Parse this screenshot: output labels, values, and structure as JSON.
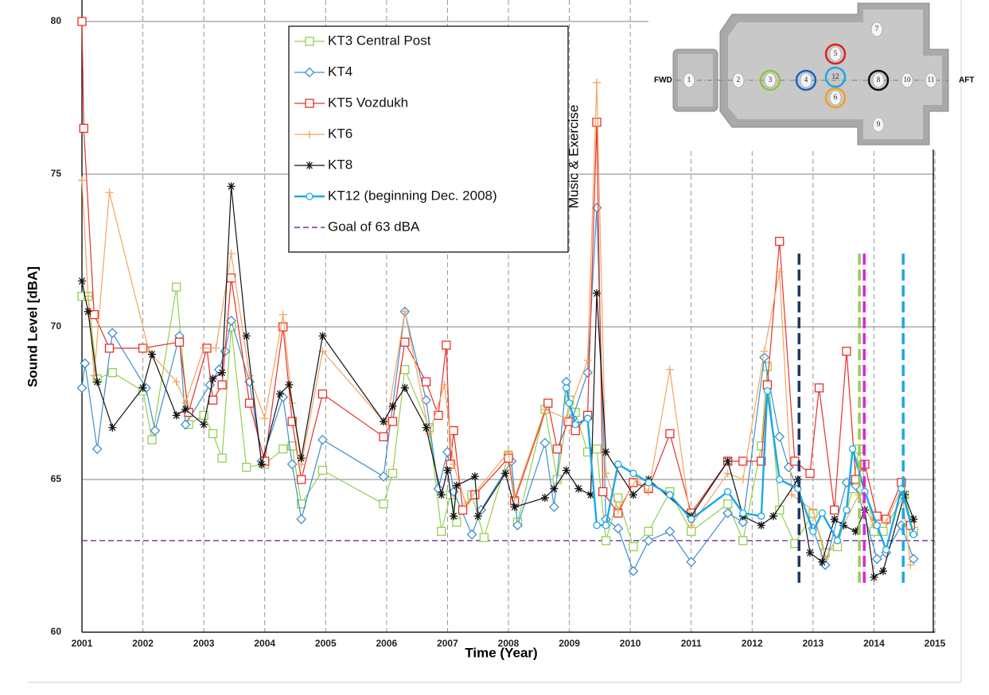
{
  "chart_data": {
    "type": "line",
    "x_label": "Time (Year)",
    "y_label": "Sound Level [dBA]",
    "xlim": [
      2001,
      2015
    ],
    "ylim": [
      60,
      80
    ],
    "xticks": [
      2001,
      2002,
      2003,
      2004,
      2005,
      2006,
      2007,
      2008,
      2009,
      2010,
      2011,
      2012,
      2013,
      2014,
      2015
    ],
    "yticks": [
      60,
      65,
      70,
      75,
      80
    ],
    "grid": true,
    "series": [
      {
        "name": "KT3 Central Post",
        "color": "#92d050",
        "marker": "square",
        "x": [
          2001.0,
          2001.1,
          2001.25,
          2001.5,
          2002.0,
          2002.15,
          2002.55,
          2002.75,
          2003.0,
          2003.15,
          2003.3,
          2003.45,
          2003.7,
          2004.0,
          2004.3,
          2004.45,
          2004.6,
          2004.95,
          2005.95,
          2006.1,
          2006.3,
          2006.7,
          2006.9,
          2007.05,
          2007.15,
          2007.4,
          2007.6,
          2008.0,
          2008.15,
          2008.6,
          2008.8,
          2009.0,
          2009.1,
          2009.3,
          2009.45,
          2009.6,
          2009.8,
          2010.05,
          2010.3,
          2010.65,
          2011.0,
          2011.6,
          2011.85,
          2012.15,
          2012.25,
          2012.45,
          2012.7,
          2013.0,
          2013.2,
          2013.4,
          2013.65,
          2013.75,
          2014.0,
          2014.15,
          2014.5,
          2014.65
        ],
        "values": [
          71.0,
          71.0,
          68.3,
          68.5,
          67.9,
          66.3,
          71.3,
          66.8,
          67.1,
          66.5,
          65.7,
          70.0,
          65.4,
          65.5,
          66.0,
          66.1,
          64.2,
          65.3,
          64.2,
          65.2,
          68.6,
          66.7,
          63.3,
          64.5,
          63.6,
          64.5,
          63.1,
          65.8,
          63.6,
          67.3,
          65.0,
          67.6,
          67.2,
          65.9,
          66.0,
          63.0,
          64.4,
          62.8,
          63.3,
          64.6,
          63.3,
          64.2,
          63.0,
          66.1,
          68.7,
          64.0,
          62.9,
          63.9,
          62.6,
          62.8,
          64.7,
          66.0,
          63.3,
          63.3,
          64.5,
          63.3
        ]
      },
      {
        "name": "KT4",
        "color": "#3d8fd0",
        "marker": "diamond",
        "x": [
          2001.0,
          2001.05,
          2001.25,
          2001.5,
          2002.05,
          2002.2,
          2002.6,
          2002.7,
          2003.1,
          2003.25,
          2003.35,
          2003.45,
          2003.75,
          2003.95,
          2004.3,
          2004.45,
          2004.6,
          2004.95,
          2005.95,
          2006.3,
          2006.65,
          2006.85,
          2007.0,
          2007.1,
          2007.4,
          2007.55,
          2008.05,
          2008.15,
          2008.6,
          2008.75,
          2008.95,
          2009.05,
          2009.3,
          2009.45,
          2009.6,
          2009.8,
          2010.05,
          2010.3,
          2010.65,
          2011.0,
          2011.6,
          2011.85,
          2012.2,
          2012.45,
          2012.6,
          2013.0,
          2013.2,
          2013.55,
          2013.7,
          2014.05,
          2014.2,
          2014.45,
          2014.65
        ],
        "values": [
          68.0,
          68.8,
          66.0,
          69.8,
          68.0,
          66.6,
          69.7,
          66.8,
          68.1,
          68.6,
          69.2,
          70.2,
          68.2,
          65.6,
          67.7,
          65.5,
          63.7,
          66.3,
          65.1,
          70.5,
          67.6,
          64.7,
          65.9,
          64.6,
          63.2,
          64.0,
          65.6,
          63.5,
          66.2,
          64.1,
          68.2,
          67.0,
          68.5,
          73.9,
          63.7,
          63.4,
          62.0,
          63.0,
          63.3,
          62.3,
          63.9,
          63.6,
          69.0,
          66.4,
          65.4,
          63.4,
          62.2,
          64.9,
          64.8,
          62.4,
          62.6,
          63.5,
          62.4
        ]
      },
      {
        "name": "KT5 Vozdukh",
        "color": "#e8302a",
        "marker": "square",
        "x": [
          2001.0,
          2001.03,
          2001.2,
          2001.45,
          2002.0,
          2002.6,
          2002.75,
          2003.05,
          2003.15,
          2003.3,
          2003.45,
          2003.75,
          2004.0,
          2004.3,
          2004.45,
          2004.6,
          2004.95,
          2005.95,
          2006.1,
          2006.3,
          2006.65,
          2006.85,
          2006.98,
          2007.05,
          2007.1,
          2007.25,
          2007.45,
          2008.0,
          2008.1,
          2008.65,
          2008.8,
          2008.98,
          2009.1,
          2009.3,
          2009.45,
          2009.55,
          2009.8,
          2010.05,
          2010.3,
          2010.65,
          2011.0,
          2011.6,
          2011.85,
          2012.15,
          2012.25,
          2012.45,
          2012.7,
          2012.95,
          2013.1,
          2013.35,
          2013.55,
          2013.7,
          2013.85,
          2014.05,
          2014.2,
          2014.45,
          2014.6
        ],
        "values": [
          80.0,
          76.5,
          70.4,
          69.3,
          69.3,
          69.5,
          67.2,
          69.3,
          67.6,
          68.1,
          71.6,
          67.5,
          65.6,
          70.0,
          66.9,
          65.0,
          67.8,
          66.4,
          66.9,
          69.5,
          68.2,
          67.1,
          69.4,
          65.5,
          66.6,
          64.0,
          64.5,
          65.7,
          64.3,
          67.5,
          66.0,
          66.9,
          66.6,
          67.1,
          76.7,
          64.6,
          63.9,
          64.9,
          64.7,
          66.5,
          63.9,
          65.6,
          65.6,
          65.6,
          68.1,
          72.8,
          65.6,
          65.2,
          68.0,
          64.0,
          69.2,
          65.0,
          65.5,
          63.8,
          63.7,
          64.9,
          63.5
        ]
      },
      {
        "name": "KT6",
        "color": "#f4a460",
        "marker": "plus",
        "x": [
          2001.0,
          2001.1,
          2001.2,
          2001.45,
          2002.1,
          2002.55,
          2002.7,
          2003.0,
          2003.2,
          2003.45,
          2003.75,
          2004.0,
          2004.3,
          2004.45,
          2004.6,
          2004.95,
          2006.0,
          2006.3,
          2006.7,
          2006.95,
          2007.1,
          2007.3,
          2008.0,
          2008.1,
          2008.6,
          2008.95,
          2009.3,
          2009.45,
          2009.6,
          2009.8,
          2010.1,
          2010.3,
          2010.65,
          2011.0,
          2011.6,
          2011.85,
          2012.2,
          2012.45,
          2012.65,
          2013.0,
          2013.2,
          2013.5,
          2013.75,
          2014.0,
          2014.2,
          2014.45,
          2014.6
        ],
        "values": [
          74.8,
          71.0,
          68.4,
          74.4,
          69.2,
          68.2,
          67.5,
          69.3,
          69.3,
          72.4,
          68.4,
          67.0,
          70.4,
          67.5,
          65.5,
          69.2,
          66.8,
          70.5,
          66.5,
          68.1,
          65.5,
          64.2,
          65.9,
          64.4,
          67.3,
          67.0,
          68.9,
          78.0,
          65.2,
          64.0,
          65.0,
          64.6,
          68.6,
          63.5,
          65.2,
          65.0,
          69.2,
          71.8,
          64.5,
          64.0,
          62.4,
          63.5,
          64.5,
          63.5,
          63.6,
          64.7,
          62.2
        ]
      },
      {
        "name": "KT8",
        "color": "#111111",
        "marker": "star",
        "x": [
          2001.0,
          2001.1,
          2001.25,
          2001.5,
          2002.0,
          2002.15,
          2002.55,
          2002.7,
          2003.0,
          2003.15,
          2003.3,
          2003.45,
          2003.7,
          2003.95,
          2004.25,
          2004.4,
          2004.6,
          2004.95,
          2005.95,
          2006.1,
          2006.3,
          2006.65,
          2006.9,
          2007.0,
          2007.1,
          2007.15,
          2007.45,
          2007.5,
          2007.95,
          2008.1,
          2008.6,
          2008.75,
          2008.95,
          2009.15,
          2009.35,
          2009.45,
          2009.6,
          2010.05,
          2010.3,
          2011.0,
          2011.6,
          2011.85,
          2012.15,
          2012.35,
          2012.75,
          2012.95,
          2013.15,
          2013.35,
          2013.5,
          2013.7,
          2013.85,
          2014.0,
          2014.15,
          2014.5,
          2014.65
        ],
        "values": [
          71.5,
          70.5,
          68.2,
          66.7,
          68.0,
          69.1,
          67.1,
          67.3,
          66.8,
          68.3,
          68.5,
          74.6,
          69.7,
          65.5,
          67.8,
          68.1,
          65.7,
          69.7,
          66.9,
          67.4,
          68.0,
          66.7,
          64.5,
          65.3,
          63.8,
          64.8,
          65.1,
          63.8,
          65.2,
          64.1,
          64.4,
          64.7,
          65.3,
          64.7,
          64.5,
          71.1,
          65.9,
          64.5,
          65.0,
          63.8,
          65.6,
          63.8,
          63.5,
          63.8,
          65.0,
          62.6,
          62.3,
          63.7,
          63.5,
          63.3,
          64.0,
          61.8,
          62.0,
          64.5,
          63.7
        ]
      },
      {
        "name": "KT12 (beginning Dec. 2008)",
        "color": "#1aa7e8",
        "marker": "circle",
        "x": [
          2008.95,
          2009.0,
          2009.1,
          2009.3,
          2009.45,
          2009.6,
          2009.8,
          2010.05,
          2010.3,
          2010.65,
          2011.0,
          2011.6,
          2011.85,
          2012.15,
          2012.25,
          2012.45,
          2012.75,
          2013.0,
          2013.15,
          2013.4,
          2013.55,
          2013.65,
          2013.85,
          2014.05,
          2014.2,
          2014.45,
          2014.65
        ],
        "values": [
          68.0,
          67.5,
          66.8,
          67.0,
          63.5,
          63.5,
          65.5,
          65.2,
          64.9,
          64.5,
          63.7,
          64.6,
          63.9,
          63.8,
          67.9,
          65.0,
          64.7,
          63.3,
          63.9,
          63.0,
          64.0,
          66.0,
          64.6,
          63.5,
          62.7,
          64.7,
          63.2
        ]
      }
    ],
    "reference_line": {
      "name": "Goal of 63 dBA",
      "value": 63,
      "color": "#7030a0"
    },
    "annotation": "Music & Exercise",
    "event_span": [
      61.6,
      72.4
    ],
    "event_lines": [
      {
        "x": 2012.77,
        "color": "#1f3864"
      },
      {
        "x": 2013.76,
        "color": "#92d050"
      },
      {
        "x": 2013.84,
        "color": "#e020e0"
      },
      {
        "x": 2014.48,
        "color": "#1aa7e8"
      }
    ]
  },
  "inset": {
    "fwd": "FWD",
    "aft": "AFT",
    "modules": [
      "1",
      "2",
      "3",
      "4",
      "5",
      "6",
      "7",
      "8",
      "9",
      "10",
      "11",
      "12"
    ]
  }
}
